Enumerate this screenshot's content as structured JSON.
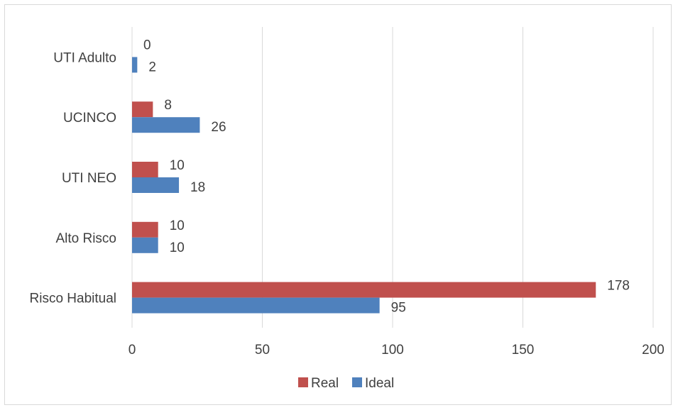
{
  "chart_data": {
    "type": "bar",
    "orientation": "horizontal",
    "title": "",
    "xlabel": "",
    "ylabel": "",
    "categories": [
      "UTI Adulto",
      "UCINCO",
      "UTI NEO",
      "Alto Risco",
      "Risco Habitual"
    ],
    "series": [
      {
        "name": "Real",
        "color": "#c0504d",
        "values": [
          0,
          8,
          10,
          10,
          178
        ]
      },
      {
        "name": "Ideal",
        "color": "#4f81bd",
        "values": [
          2,
          26,
          18,
          10,
          95
        ]
      }
    ],
    "xlim": [
      0,
      200
    ],
    "xticks": [
      0,
      50,
      100,
      150,
      200
    ],
    "grid": true,
    "legend": "bottom"
  }
}
